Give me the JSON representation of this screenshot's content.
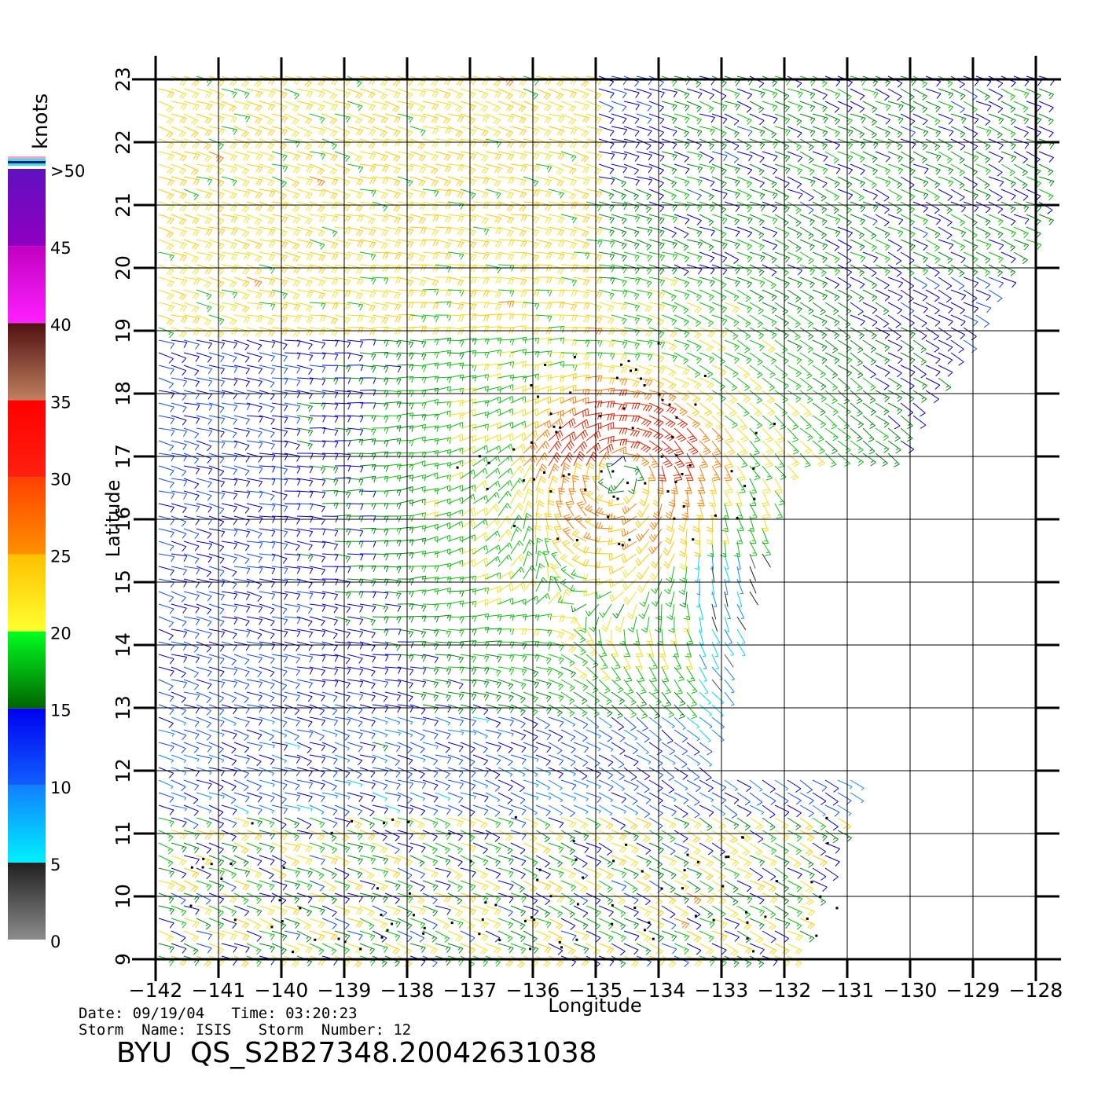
{
  "chart_data": {
    "type": "scatter",
    "subtype": "wind-barb-map",
    "xlabel": "Longitude",
    "ylabel": "Latitude",
    "xlim": [
      -142,
      -128
    ],
    "ylim": [
      9,
      23
    ],
    "x_ticks": [
      "-142",
      "-141",
      "-140",
      "-139",
      "-138",
      "-137",
      "-136",
      "-135",
      "-134",
      "-133",
      "-132",
      "-131",
      "-130",
      "-129",
      "-128"
    ],
    "y_ticks": [
      "9",
      "10",
      "11",
      "12",
      "13",
      "14",
      "15",
      "16",
      "17",
      "18",
      "19",
      "20",
      "21",
      "22",
      "23"
    ],
    "grid": true,
    "storm_center": {
      "lon": -134.6,
      "lat": 16.7
    },
    "colorbar": {
      "unit": "knots",
      "labels": [
        ">50",
        "45",
        "40",
        "35",
        "30",
        "25",
        "20",
        "15",
        "10",
        "5",
        "0"
      ],
      "bands": [
        {
          "range": [
            0,
            5
          ],
          "colors": [
            "#8c8c8c",
            "#202020"
          ]
        },
        {
          "range": [
            5,
            10
          ],
          "colors": [
            "#00f0ff",
            "#1080ff"
          ]
        },
        {
          "range": [
            10,
            15
          ],
          "colors": [
            "#1060ff",
            "#0000f0"
          ]
        },
        {
          "range": [
            15,
            20
          ],
          "colors": [
            "#006400",
            "#00ff20"
          ]
        },
        {
          "range": [
            20,
            25
          ],
          "colors": [
            "#ffff30",
            "#ffc000"
          ]
        },
        {
          "range": [
            25,
            30
          ],
          "colors": [
            "#ff9000",
            "#ff4000"
          ]
        },
        {
          "range": [
            30,
            35
          ],
          "colors": [
            "#ff2010",
            "#ff0000"
          ]
        },
        {
          "range": [
            35,
            40
          ],
          "colors": [
            "#c08060",
            "#501010"
          ]
        },
        {
          "range": [
            40,
            45
          ],
          "colors": [
            "#ff20ff",
            "#c000c0"
          ]
        },
        {
          "range": [
            45,
            50
          ],
          "colors": [
            "#9000c0",
            "#6010c0"
          ]
        }
      ]
    }
  },
  "footer": {
    "date_line": "Date: 09/19/04   Time: 03:20:23",
    "storm_line": "Storm  Name: ISIS   Storm  Number: 12",
    "product_id": "BYU  QS_S2B27348.20042631038"
  }
}
